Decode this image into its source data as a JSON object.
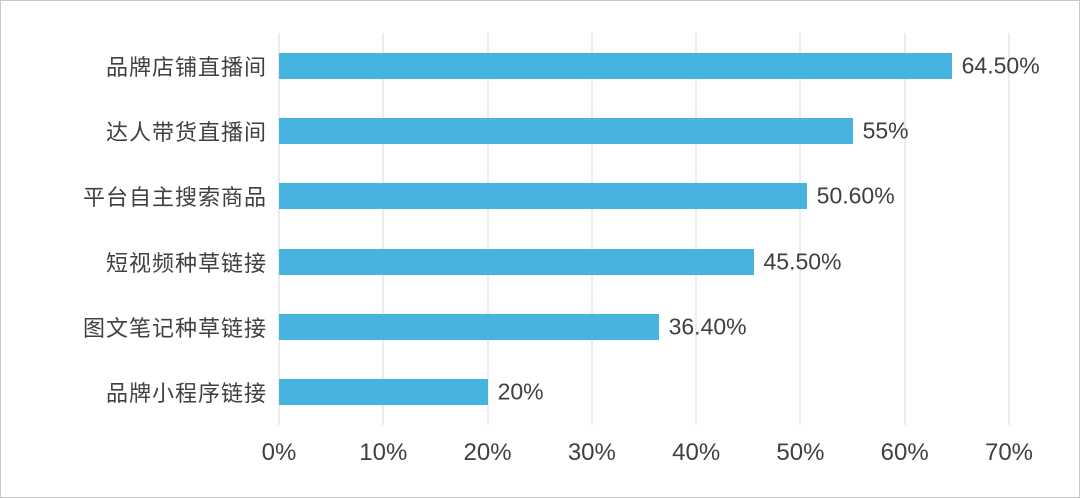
{
  "chart_data": {
    "type": "bar",
    "orientation": "horizontal",
    "title": "",
    "xlabel": "",
    "ylabel": "",
    "categories": [
      "品牌店铺直播间",
      "达人带货直播间",
      "平台自主搜索商品",
      "短视频种草链接",
      "图文笔记种草链接",
      "品牌小程序链接"
    ],
    "values": [
      64.5,
      55,
      50.6,
      45.5,
      36.4,
      20
    ],
    "value_labels": [
      "64.50%",
      "55%",
      "50.60%",
      "45.50%",
      "36.40%",
      "20%"
    ],
    "xlim": [
      0,
      70
    ],
    "x_tick_values": [
      0,
      10,
      20,
      30,
      40,
      50,
      60,
      70
    ],
    "x_tick_labels": [
      "0%",
      "10%",
      "20%",
      "30%",
      "40%",
      "50%",
      "60%",
      "70%"
    ],
    "grid": true,
    "legend": "none",
    "colors": {
      "bar": "#47B4E0",
      "gridline": "#d9d9d9",
      "text": "#404040",
      "background": "#ffffff"
    }
  }
}
